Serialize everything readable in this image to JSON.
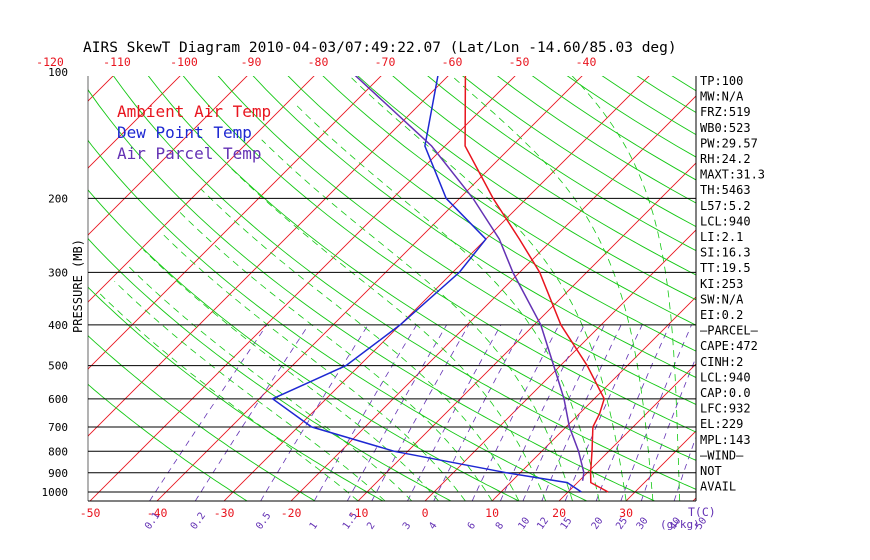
{
  "chart_data": {
    "type": "line",
    "title": "AIRS SkewT Diagram 2010-04-03/07:49:22.07 (Lat/Lon -14.60/85.03 deg)",
    "ylabel": "PRESSURE (MB)",
    "xlabel_right": "T(C)",
    "mixing_ratio_unit": "g/kg",
    "y_scale": "log",
    "ylim": [
      1050,
      100
    ],
    "pressure_ticks": [
      100,
      200,
      300,
      400,
      500,
      600,
      700,
      800,
      900,
      1000
    ],
    "isobars": [
      200,
      300,
      400,
      500,
      600,
      700,
      800,
      900,
      1000
    ],
    "top_temp_ticks": [
      -120,
      -110,
      -100,
      -90,
      -80,
      -70,
      -60,
      -50,
      -40
    ],
    "bottom_temp_ticks": [
      -50,
      -40,
      -30,
      -20,
      -10,
      0,
      10,
      20,
      30
    ],
    "mixing_ratio_labels": [
      "0.1",
      "0.2",
      "0.5",
      "1",
      "1.5",
      "2",
      "3",
      "4",
      "6",
      "8",
      "10",
      "12",
      "15",
      "20",
      "25",
      "30",
      "40",
      "50"
    ],
    "legend": [
      {
        "label": "Ambient Air Temp",
        "color": "#e8141e"
      },
      {
        "label": "Dew Point Temp",
        "color": "#1e28d2"
      },
      {
        "label": "Air Parcel Temp",
        "color": "#6432b4"
      }
    ],
    "series": [
      {
        "name": "Ambient Air Temp",
        "color": "#e8141e",
        "points": [
          [
            1000,
            26
          ],
          [
            950,
            22
          ],
          [
            900,
            20.5
          ],
          [
            800,
            17.5
          ],
          [
            700,
            14
          ],
          [
            650,
            13
          ],
          [
            600,
            11.5
          ],
          [
            500,
            4
          ],
          [
            400,
            -6
          ],
          [
            300,
            -17
          ],
          [
            250,
            -25
          ],
          [
            200,
            -35
          ],
          [
            150,
            -47
          ],
          [
            100,
            -58
          ]
        ]
      },
      {
        "name": "Dew Point Temp",
        "color": "#1e28d2",
        "points": [
          [
            1000,
            22
          ],
          [
            950,
            18.5
          ],
          [
            900,
            8
          ],
          [
            800,
            -12
          ],
          [
            700,
            -28
          ],
          [
            600,
            -38
          ],
          [
            500,
            -32
          ],
          [
            400,
            -30
          ],
          [
            300,
            -29
          ],
          [
            250,
            -30
          ],
          [
            200,
            -42
          ],
          [
            150,
            -53
          ],
          [
            100,
            -62
          ]
        ]
      },
      {
        "name": "Air Parcel Temp",
        "color": "#6432b4",
        "points": [
          [
            940,
            20.5
          ],
          [
            900,
            19.5
          ],
          [
            800,
            15.5
          ],
          [
            700,
            10.5
          ],
          [
            600,
            5.5
          ],
          [
            500,
            -1
          ],
          [
            400,
            -9
          ],
          [
            300,
            -21
          ],
          [
            250,
            -28
          ],
          [
            200,
            -38
          ],
          [
            150,
            -52
          ],
          [
            100,
            -75
          ]
        ]
      }
    ],
    "indices": [
      "TP:100",
      "MW:N/A",
      "FRZ:519",
      "WB0:523",
      "PW:29.57",
      "RH:24.2",
      "MAXT:31.3",
      "TH:5463",
      "L57:5.2",
      "LCL:940",
      "LI:2.1",
      "SI:16.3",
      "TT:19.5",
      "KI:253",
      "SW:N/A",
      "EI:0.2",
      "—PARCEL—",
      "CAPE:472",
      "CINH:2",
      "LCL:940",
      "CAP:0.0",
      "LFC:932",
      "EL:229",
      "MPL:143",
      "—WIND—",
      "NOT",
      "AVAIL"
    ],
    "colors": {
      "isotherm": "#e8141e",
      "dry_adiabat": "#14c814",
      "moist_adiabat": "#14c814",
      "mixing_ratio": "#6432b4",
      "isobar": "#000000",
      "text": "#000000"
    },
    "grid": true,
    "legend_position": "top-left"
  }
}
